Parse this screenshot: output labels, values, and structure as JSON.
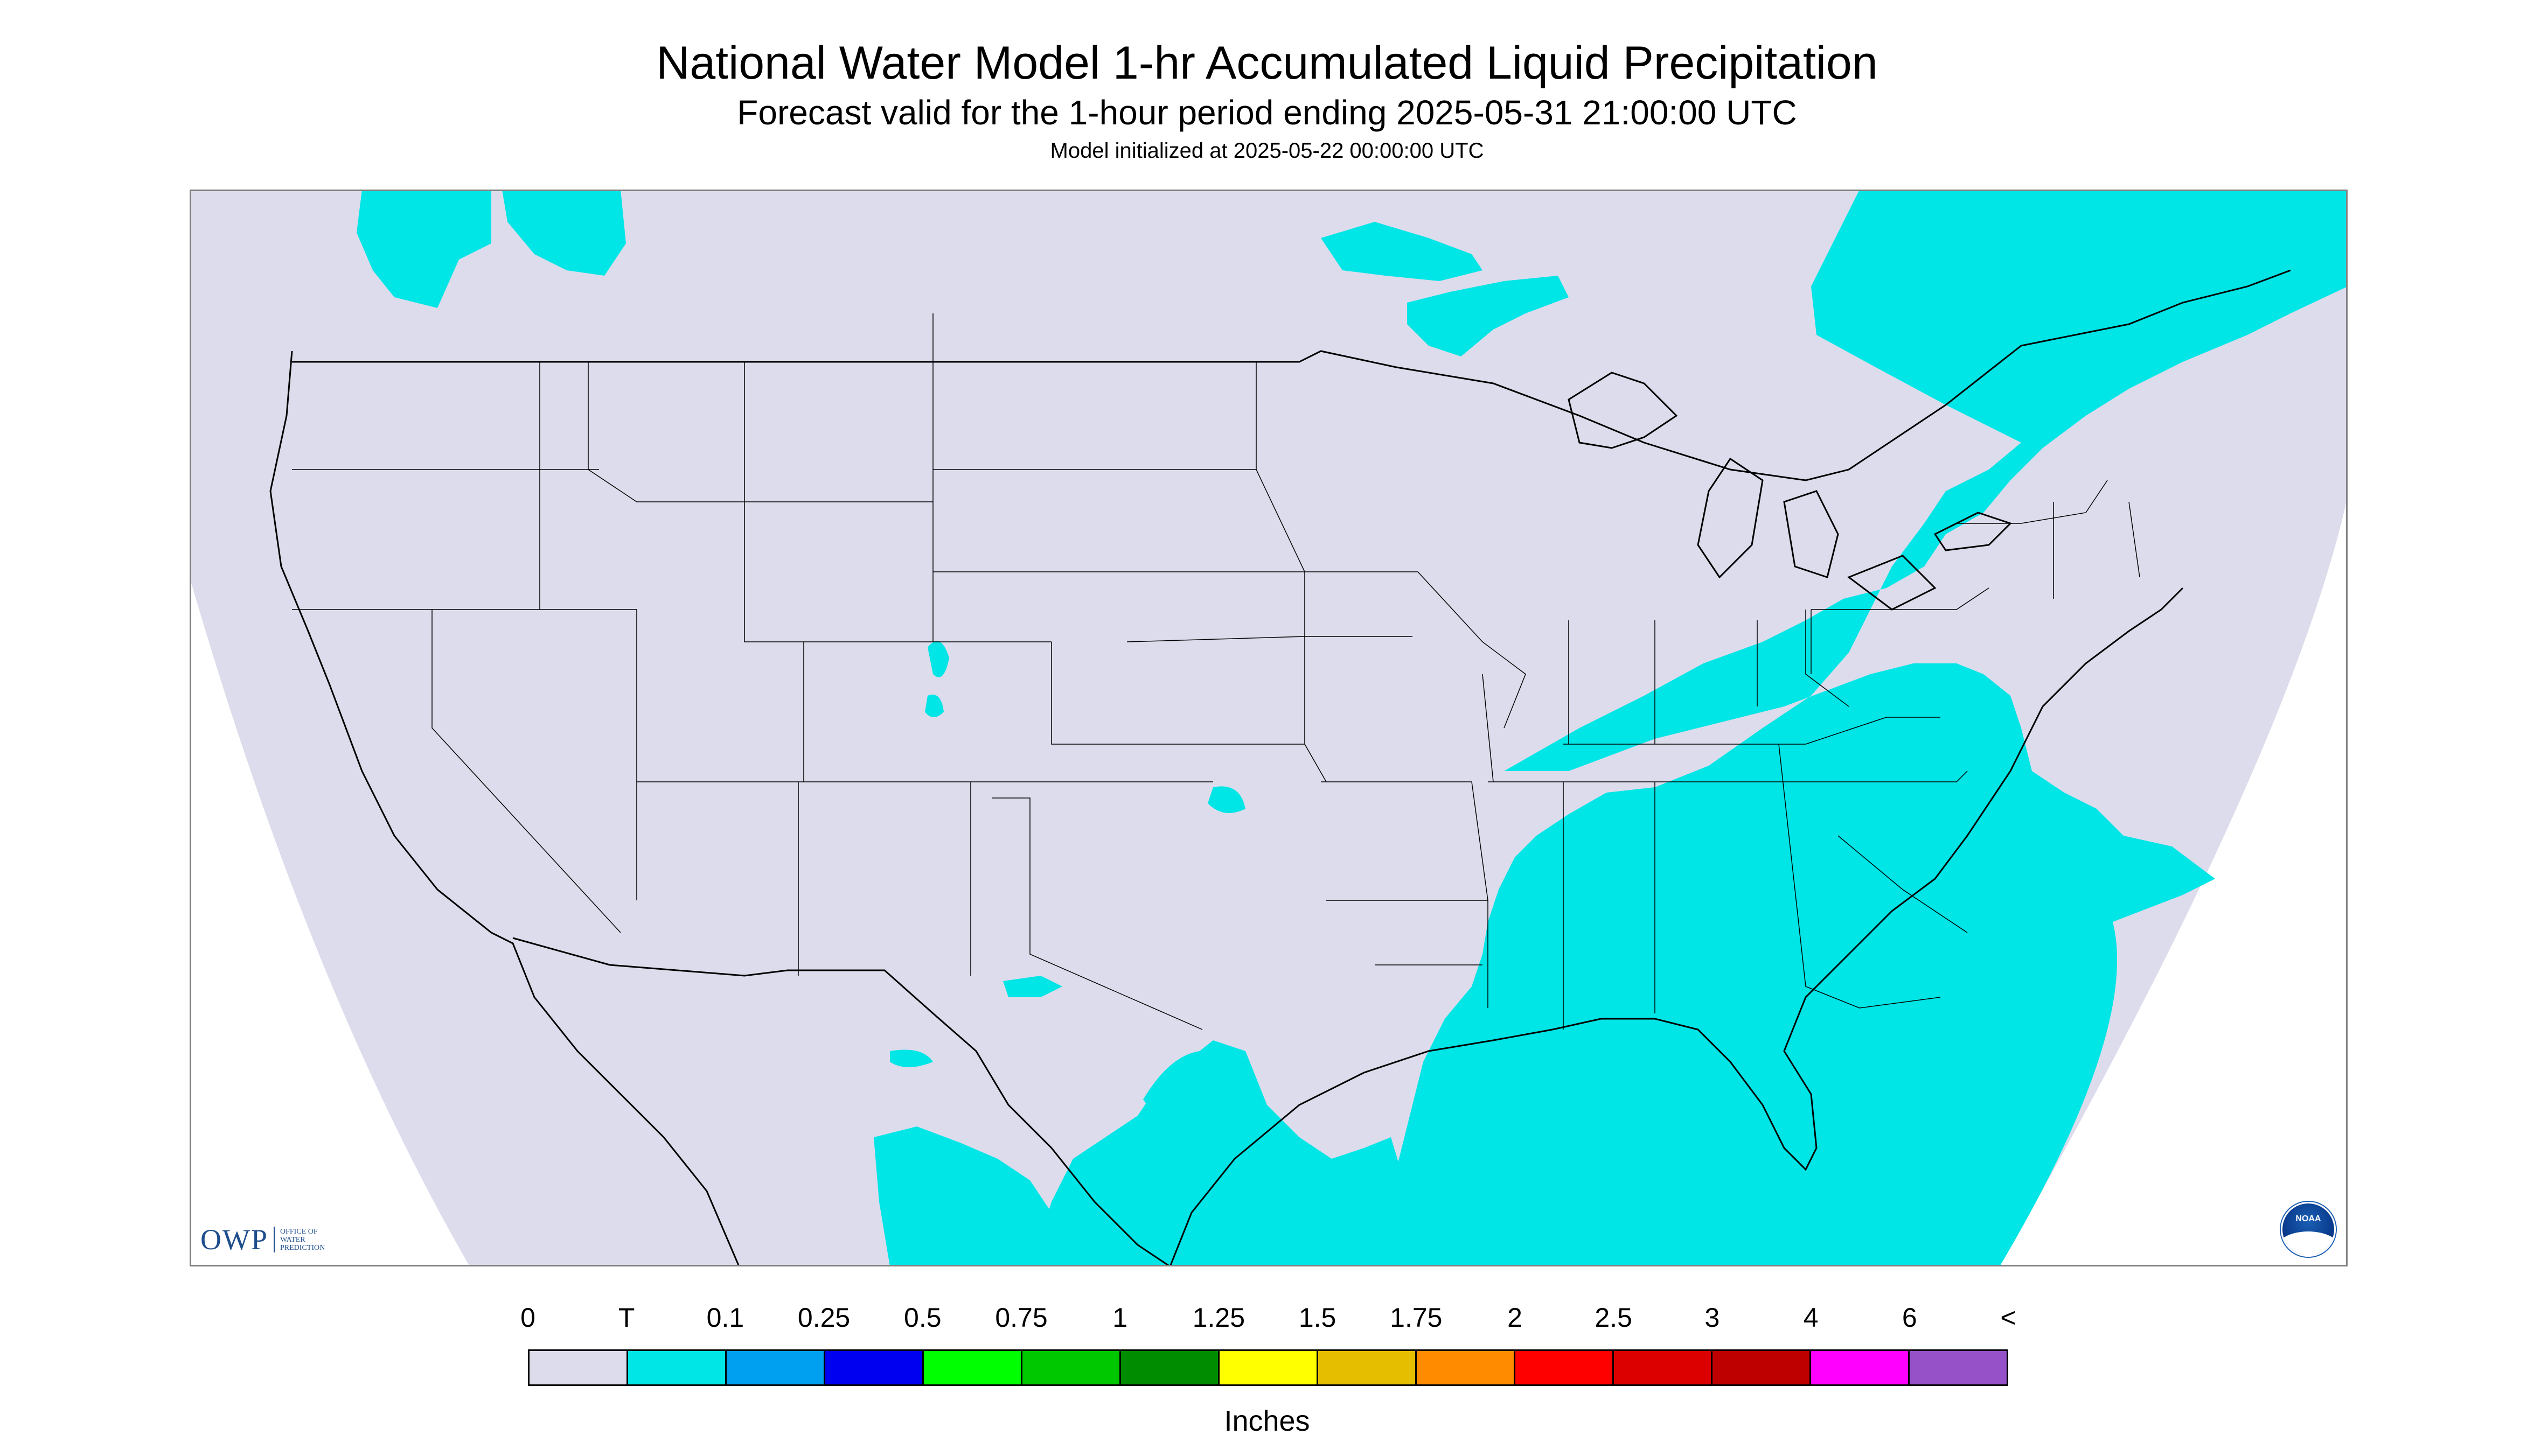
{
  "title": "National Water Model 1-hr Accumulated Liquid Precipitation",
  "subtitle": "Forecast valid for the 1-hour period ending 2025-05-31 21:00:00 UTC",
  "init_text": "Model initialized at 2025-05-22 00:00:00 UTC",
  "logos": {
    "owp_text": "OWP",
    "owp_subtext": "OFFICE OF WATER PREDICTION",
    "noaa_text": "NOAA"
  },
  "map": {
    "background_color": "#dcdcec",
    "precip_color": "#00e5e5",
    "area_hint": "continental United States with southern Canada and northern Mexico"
  },
  "legend": {
    "units": "Inches",
    "labels": [
      "0",
      "T",
      "0.1",
      "0.25",
      "0.5",
      "0.75",
      "1",
      "1.25",
      "1.5",
      "1.75",
      "2",
      "2.5",
      "3",
      "4",
      "6",
      "<"
    ],
    "colors": [
      "#dcdcec",
      "#00e5e5",
      "#00a0f0",
      "#0000f0",
      "#00ff00",
      "#00c800",
      "#008c00",
      "#ffff00",
      "#e6be00",
      "#ff8c00",
      "#ff0000",
      "#dc0000",
      "#be0000",
      "#ff00ff",
      "#9650c8"
    ]
  }
}
